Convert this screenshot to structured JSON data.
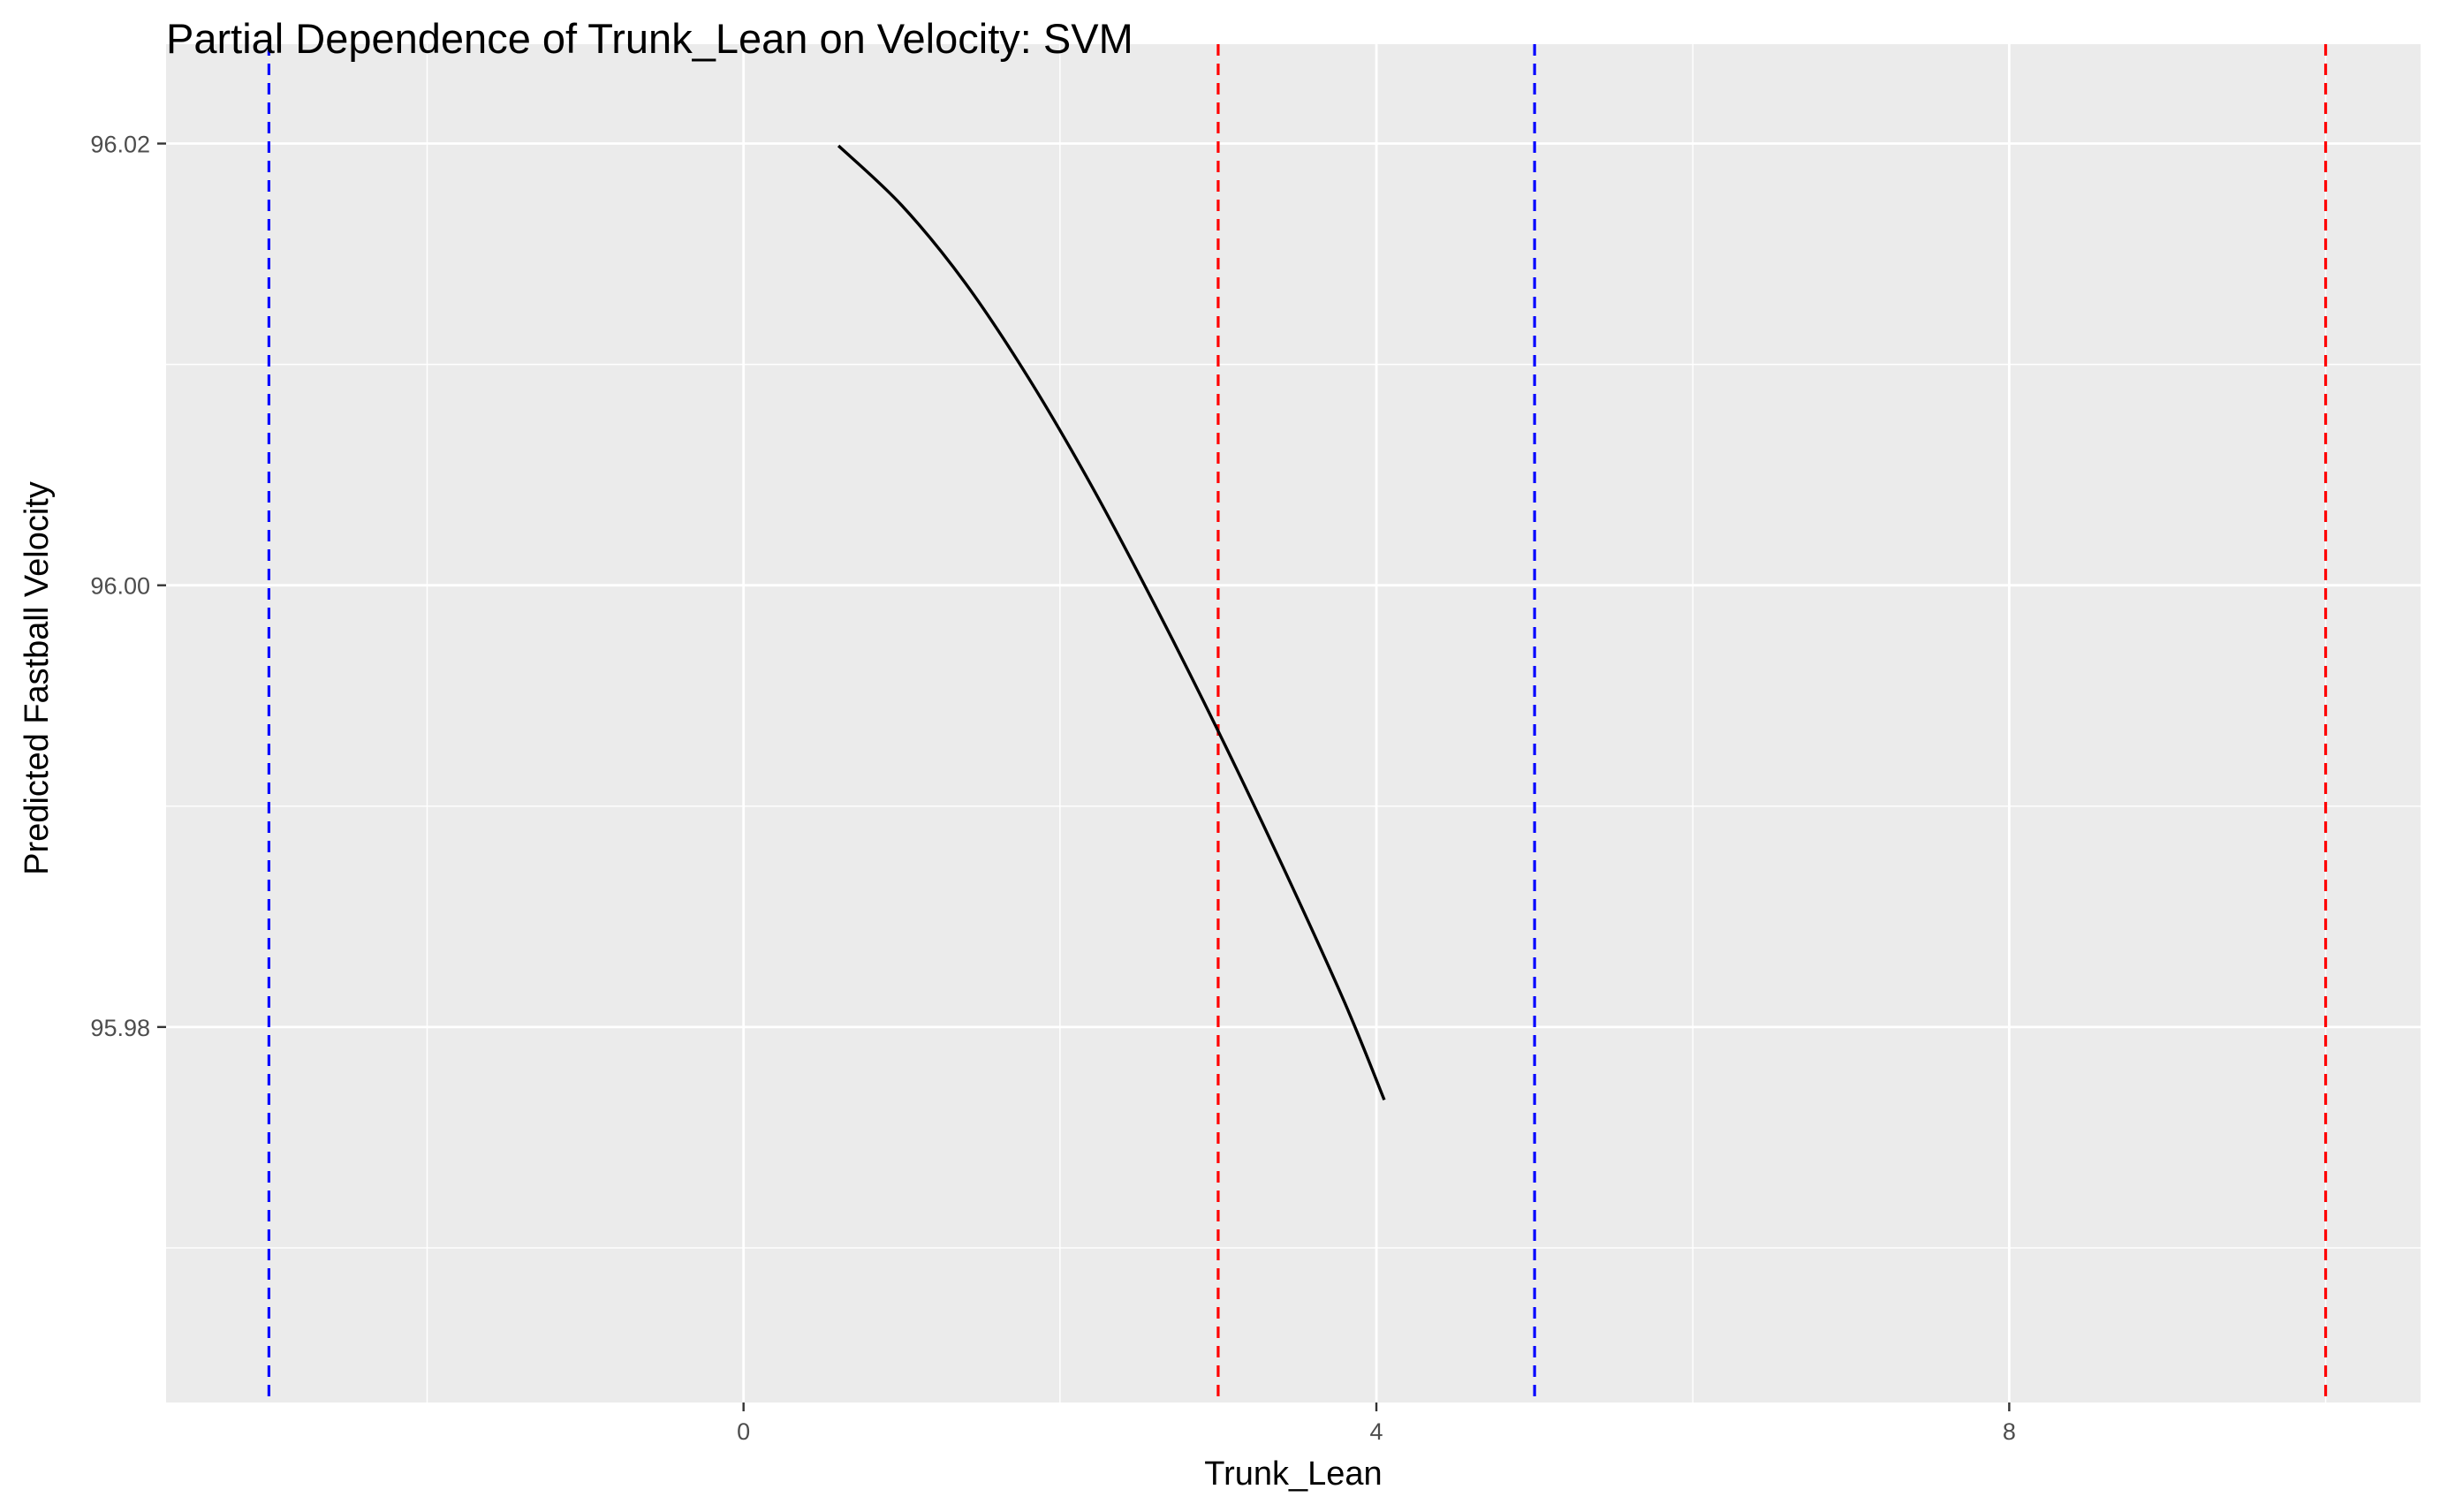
{
  "chart_data": {
    "type": "line",
    "title": "Partial Dependence of Trunk_Lean on Velocity: SVM",
    "xlabel": "Trunk_Lean",
    "ylabel": "Predicted Fastball Velocity",
    "xlim": [
      -3.65,
      10.6
    ],
    "ylim": [
      95.963,
      96.0245
    ],
    "x_ticks": [
      0,
      4,
      8
    ],
    "x_tick_labels": [
      "0",
      "4",
      "8"
    ],
    "x_minor_ticks": [
      -2,
      2,
      6,
      10
    ],
    "y_ticks": [
      95.98,
      96.0,
      96.02
    ],
    "y_tick_labels": [
      "95.98",
      "96.00",
      "96.02"
    ],
    "y_minor_ticks": [
      95.97,
      95.99,
      96.01
    ],
    "grid": true,
    "background": "#ebebeb",
    "series": [
      {
        "color": "#000000",
        "x": [
          0.6,
          1.0,
          1.4,
          1.8,
          2.2,
          2.6,
          3.0,
          3.4,
          3.8,
          4.05
        ],
        "y": [
          96.0199,
          96.0172,
          96.0137,
          96.0094,
          96.0045,
          95.9991,
          95.9934,
          95.9874,
          95.9811,
          95.9767
        ]
      }
    ],
    "reference_lines": [
      {
        "x": -3.0,
        "color": "#0000ff",
        "style": "dashed"
      },
      {
        "x": 5.0,
        "color": "#0000ff",
        "style": "dashed"
      },
      {
        "x": 3.0,
        "color": "#ff0000",
        "style": "dashed"
      },
      {
        "x": 10.0,
        "color": "#ff0000",
        "style": "dashed"
      }
    ]
  }
}
